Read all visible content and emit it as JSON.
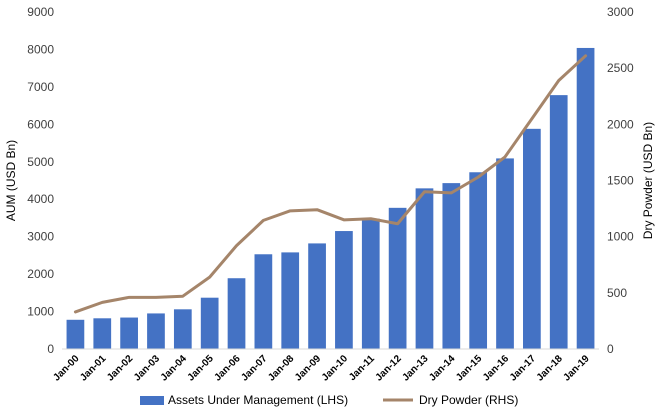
{
  "chart_data": {
    "type": "bar",
    "categories": [
      "Jan-00",
      "Jan-01",
      "Jan-02",
      "Jan-03",
      "Jan-04",
      "Jan-05",
      "Jan-06",
      "Jan-07",
      "Jan-08",
      "Jan-09",
      "Jan-10",
      "Jan-11",
      "Jan-12",
      "Jan-13",
      "Jan-14",
      "Jan-15",
      "Jan-16",
      "Jan-17",
      "Jan-18",
      "Jan-19"
    ],
    "series": [
      {
        "name": "Assets Under Management (LHS)",
        "type": "bar",
        "axis": "left",
        "color": "#4472C4",
        "values": [
          780,
          820,
          840,
          950,
          1060,
          1370,
          1890,
          2530,
          2580,
          2820,
          3150,
          3480,
          3770,
          4290,
          4430,
          4720,
          5090,
          5880,
          6780,
          8040
        ]
      },
      {
        "name": "Dry Powder (RHS)",
        "type": "line",
        "axis": "right",
        "color": "#A5856A",
        "values": [
          330,
          415,
          460,
          460,
          470,
          640,
          920,
          1145,
          1230,
          1240,
          1150,
          1160,
          1115,
          1400,
          1390,
          1530,
          1710,
          2050,
          2390,
          2610
        ]
      }
    ],
    "ylabel": "AUM (USD Bn)",
    "ylabel_right": "Dry Powder (USD Bn)",
    "ylim": [
      0,
      9000
    ],
    "ylim_right": [
      0,
      3000
    ],
    "yticks": [
      0,
      1000,
      2000,
      3000,
      4000,
      5000,
      6000,
      7000,
      8000,
      9000
    ],
    "yticks_right": [
      0,
      500,
      1000,
      1500,
      2000,
      2500,
      3000
    ],
    "grid": false,
    "legend": "bottom"
  }
}
